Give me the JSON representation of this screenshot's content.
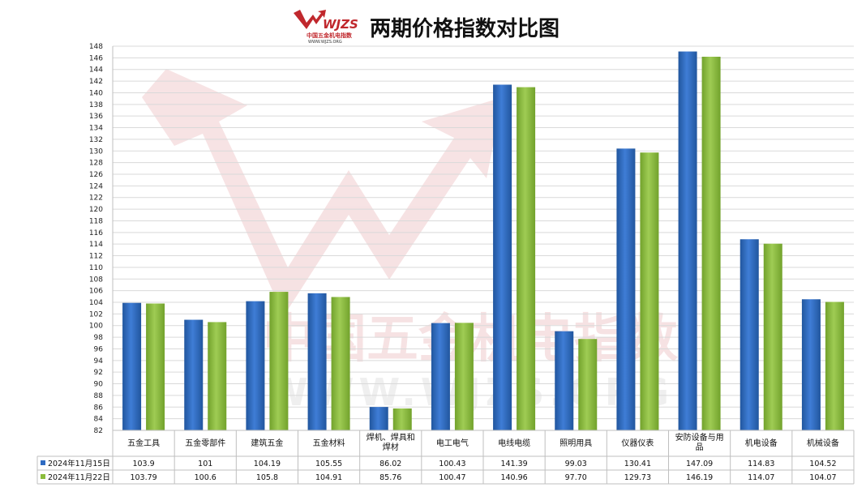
{
  "title": "两期价格指数对比图",
  "logo": {
    "brand": "WJZS",
    "name": "中国五金机电指数",
    "url": "WWW.WJZS.ORG"
  },
  "watermark": {
    "line1": "中国五金机电指数",
    "line2": "WWW.WJZS.ORG"
  },
  "colors": {
    "series1": "#2e6bc2",
    "series2": "#8bbd3c",
    "grid": "#d9d9d9",
    "brand": "#c0282d"
  },
  "chart_data": {
    "type": "bar",
    "title": "两期价格指数对比图",
    "categories": [
      "五金工具",
      "五金零部件",
      "建筑五金",
      "五金材料",
      "焊机、焊具和焊材",
      "电工电气",
      "电线电缆",
      "照明用具",
      "仪器仪表",
      "安防设备与用品",
      "机电设备",
      "机械设备"
    ],
    "series": [
      {
        "name": "2024年11月15日",
        "values": [
          103.9,
          101,
          104.19,
          105.55,
          86.02,
          100.43,
          141.39,
          99.03,
          130.41,
          147.09,
          114.83,
          104.52
        ],
        "labels": [
          "103.9",
          "101",
          "104.19",
          "105.55",
          "86.02",
          "100.43",
          "141.39",
          "99.03",
          "130.41",
          "147.09",
          "114.83",
          "104.52"
        ]
      },
      {
        "name": "2024年11月22日",
        "values": [
          103.79,
          100.6,
          105.8,
          104.91,
          85.76,
          100.47,
          140.96,
          97.7,
          129.73,
          146.19,
          114.07,
          104.07
        ],
        "labels": [
          "103.79",
          "100.6",
          "105.8",
          "104.91",
          "85.76",
          "100.47",
          "140.96",
          "97.70",
          "129.73",
          "146.19",
          "114.07",
          "104.07"
        ]
      }
    ],
    "ylim": [
      82,
      148
    ],
    "ytick_step": 2,
    "grid": true,
    "legend": "data-table"
  }
}
